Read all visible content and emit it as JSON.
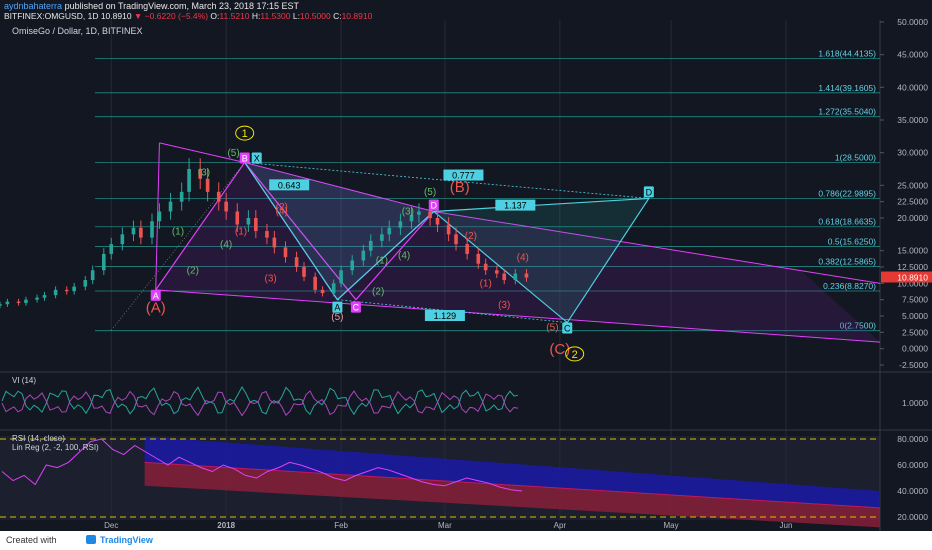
{
  "header": {
    "author": "aydnbahaterra",
    "published": "published on TradingView.com, March 23, 2018 17:15 EST",
    "ohlc_line": "BITFINEX:OMGUSD, 1D  10.8910",
    "change": "−0.6220 (−5.4%)",
    "o_label": "O:",
    "o_val": "11.5210",
    "h_label": "H:",
    "h_val": "11.5300",
    "l_label": "L:",
    "l_val": "10.5000",
    "c_label": "C:",
    "c_val": "10.8910"
  },
  "pane_title": "OmiseGo / Dollar, 1D, BITFINEX",
  "footer": {
    "created": "Created with",
    "brand": "TradingView"
  },
  "indicators": {
    "vi": "VI (14)",
    "rsi": "RSI (14, close)",
    "linreg": "Lin Reg (2, -2, 100, RSI)"
  },
  "colors": {
    "background": "#131722",
    "fib_line": "#26a69a",
    "fib_text": "#5fd3e6",
    "pattern_magenta": "#e040fb",
    "pattern_cyan": "#4dd0e1",
    "wave_green": "#66bb6a",
    "wave_red": "#ef5350",
    "wave_yellow": "#f2e600",
    "up_candle": "#26a69a",
    "down_candle": "#ef5350",
    "last_price_bg": "#e53935",
    "vi_plus": "#26a69a",
    "vi_minus": "#ab47bc",
    "rsi_line": "#e040fb",
    "channel_blue": "#1a1aa6",
    "channel_red": "#8e1f3a"
  },
  "chart_data": {
    "type": "line",
    "main_axis": {
      "ylim": [
        -2.5,
        50
      ],
      "ticks": [
        "50.0000",
        "45.0000",
        "40.0000",
        "35.0000",
        "30.0000",
        "25.0000",
        "22.5000",
        "20.0000",
        "15.0000",
        "12.5000",
        "10.0000",
        "7.5000",
        "5.0000",
        "2.5000",
        "0.0000",
        "-2.5000"
      ],
      "last_price": "10.8910"
    },
    "x_ticks": [
      "Dec",
      "2018",
      "Feb",
      "Mar",
      "Apr",
      "May",
      "Jun"
    ],
    "fib_levels": [
      {
        "label": "1.618(44.4135)",
        "value": 44.4135
      },
      {
        "label": "1.414(39.1605)",
        "value": 39.1605
      },
      {
        "label": "1.272(35.5040)",
        "value": 35.504
      },
      {
        "label": "1(28.5000)",
        "value": 28.5
      },
      {
        "label": "0.786(22.9895)",
        "value": 22.9895
      },
      {
        "label": "0.618(18.6635)",
        "value": 18.6635
      },
      {
        "label": "0.5(15.6250)",
        "value": 15.625
      },
      {
        "label": "0.382(12.5865)",
        "value": 12.5865
      },
      {
        "label": "0.236(8.8270)",
        "value": 8.827
      },
      {
        "label": "0(2.7500)",
        "value": 2.75
      }
    ],
    "pattern_points": [
      {
        "label": "A",
        "date": "2017-12-13",
        "price": 9.0
      },
      {
        "label": "X",
        "date": "2018-01-06",
        "price": 28.5
      },
      {
        "label": "A",
        "date": "2018-01-31",
        "price": 7.5
      },
      {
        "label": "B",
        "date": "2018-02-05",
        "price": 7.5
      },
      {
        "label": "D",
        "date": "2018-02-26",
        "price": 21.0
      },
      {
        "label": "C",
        "date": "2018-04-03",
        "price": 4.0
      },
      {
        "label": "D",
        "date": "2018-04-25",
        "price": 23.0
      }
    ],
    "ratios": [
      "0.643",
      "0.777",
      "1.137",
      "1.129"
    ],
    "wave_labels": {
      "green": [
        "(1)",
        "(2)",
        "(3)",
        "(4)",
        "(5)",
        "(1)",
        "(2)",
        "(3)",
        "(4)",
        "(5)",
        "(A)"
      ],
      "red": [
        "(1)",
        "(2)",
        "(3)",
        "(4)",
        "(1)",
        "(2)",
        "(3)",
        "(4)",
        "(5)",
        "(5)",
        "(B)",
        "(C)",
        "(A)"
      ],
      "yellow": [
        "1",
        "2"
      ]
    },
    "series": [
      {
        "name": "OMGUSD",
        "type": "candlestick",
        "approx_closes": [
          6.8,
          7.2,
          7.0,
          7.5,
          7.8,
          8.2,
          9.0,
          8.8,
          9.5,
          10.5,
          12.0,
          14.5,
          16.0,
          17.5,
          18.5,
          17.0,
          19.5,
          21.0,
          22.5,
          24.0,
          27.5,
          26.0,
          24.0,
          22.5,
          21.0,
          19.0,
          20.0,
          18.0,
          17.0,
          15.5,
          14.0,
          12.5,
          11.0,
          9.0,
          8.5,
          10.0,
          12.0,
          13.5,
          15.0,
          16.5,
          17.5,
          18.5,
          19.5,
          20.5,
          21.0,
          20.0,
          19.0,
          17.5,
          16.0,
          14.5,
          13.0,
          12.0,
          11.5,
          10.5,
          11.5,
          10.89
        ]
      }
    ],
    "vi_axis": {
      "ticks": [
        "1.0000"
      ]
    },
    "rsi_axis": {
      "ticks": [
        "80.0000",
        "60.0000",
        "40.0000",
        "20.0000"
      ],
      "ylim": [
        20,
        80
      ]
    },
    "rsi_values": [
      55,
      48,
      52,
      45,
      60,
      58,
      62,
      70,
      78,
      80,
      72,
      68,
      75,
      70,
      65,
      60,
      66,
      62,
      58,
      55,
      60,
      57,
      52,
      50,
      55,
      58,
      62,
      60,
      57,
      54,
      50,
      48,
      52,
      55,
      58,
      56,
      53,
      50,
      47,
      45,
      44,
      47,
      50,
      48,
      46,
      43,
      41,
      40
    ]
  }
}
